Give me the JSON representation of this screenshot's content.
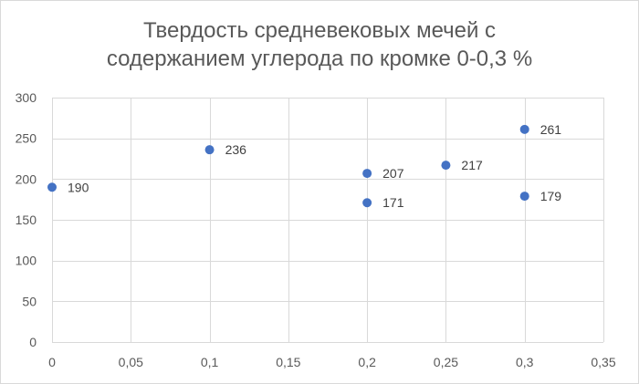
{
  "chart_data": {
    "type": "scatter",
    "title_lines": [
      "Твердость средневековых мечей с",
      "содержанием углерода по кромке 0-0,3 %"
    ],
    "xlabel": "",
    "ylabel": "",
    "xlim": [
      0,
      0.35
    ],
    "ylim": [
      0,
      300
    ],
    "x_ticks": [
      {
        "value": 0,
        "label": "0"
      },
      {
        "value": 0.05,
        "label": "0,05"
      },
      {
        "value": 0.1,
        "label": "0,1"
      },
      {
        "value": 0.15,
        "label": "0,15"
      },
      {
        "value": 0.2,
        "label": "0,2"
      },
      {
        "value": 0.25,
        "label": "0,25"
      },
      {
        "value": 0.3,
        "label": "0,3"
      },
      {
        "value": 0.35,
        "label": "0,35"
      }
    ],
    "y_ticks": [
      {
        "value": 0,
        "label": "0"
      },
      {
        "value": 50,
        "label": "50"
      },
      {
        "value": 100,
        "label": "100"
      },
      {
        "value": 150,
        "label": "150"
      },
      {
        "value": 200,
        "label": "200"
      },
      {
        "value": 250,
        "label": "250"
      },
      {
        "value": 300,
        "label": "300"
      }
    ],
    "grid": true,
    "legend": "none",
    "series": [
      {
        "points": [
          {
            "x": 0,
            "y": 190,
            "label": "190"
          },
          {
            "x": 0.1,
            "y": 236,
            "label": "236"
          },
          {
            "x": 0.2,
            "y": 207,
            "label": "207"
          },
          {
            "x": 0.2,
            "y": 171,
            "label": "171"
          },
          {
            "x": 0.25,
            "y": 217,
            "label": "217"
          },
          {
            "x": 0.3,
            "y": 261,
            "label": "261"
          },
          {
            "x": 0.3,
            "y": 179,
            "label": "179"
          }
        ]
      }
    ],
    "colors": {
      "marker": "#4472c4",
      "grid": "#d9d9d9",
      "axis_text": "#595959",
      "label_text": "#404040"
    }
  }
}
